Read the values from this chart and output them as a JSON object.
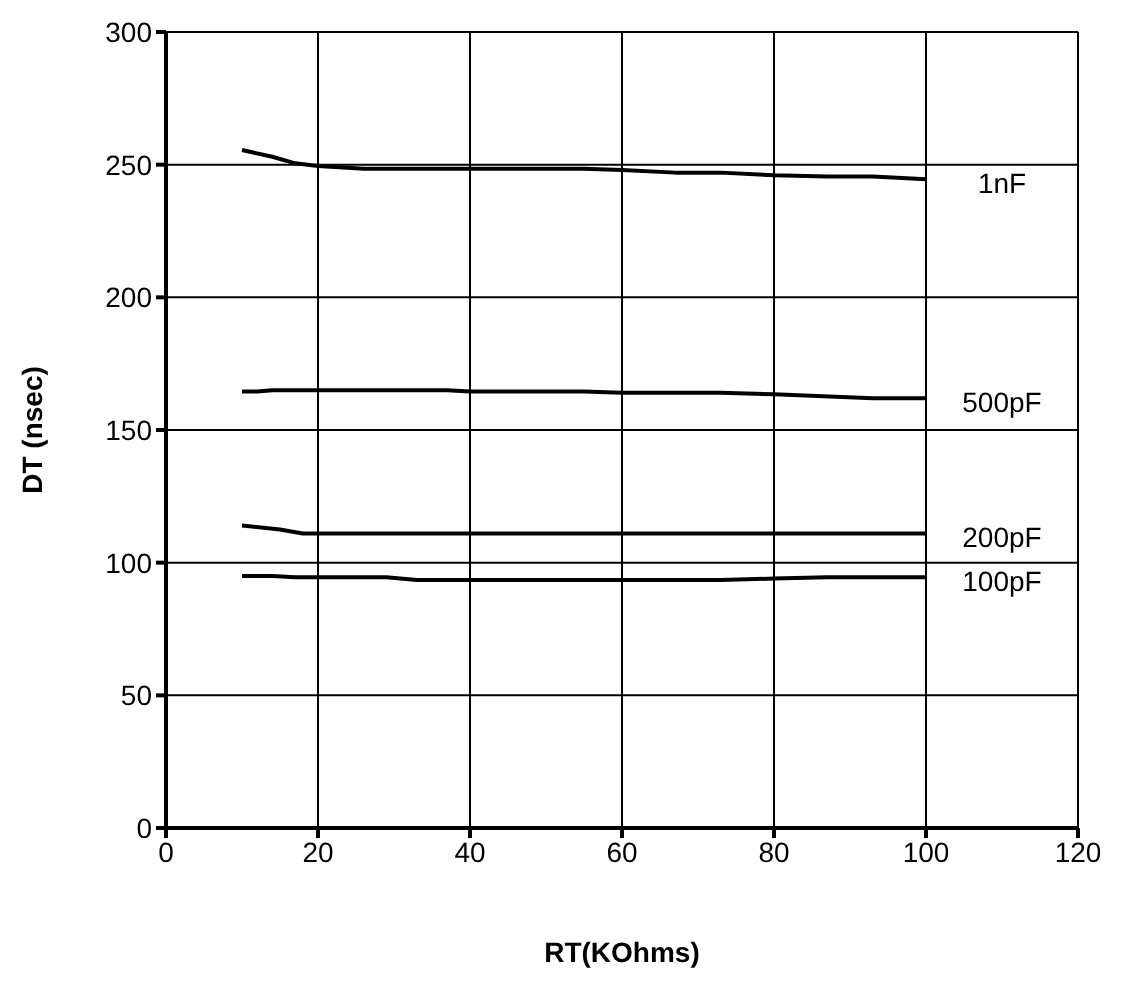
{
  "chart_data": {
    "type": "line",
    "xlabel": "RT(KOhms)",
    "ylabel": "DT (nsec)",
    "xlim": [
      0,
      120
    ],
    "xticks": [
      0,
      20,
      40,
      60,
      80,
      100,
      120
    ],
    "ylim": [
      0,
      300
    ],
    "yticks": [
      0,
      50,
      100,
      150,
      200,
      250,
      300
    ],
    "grid": true,
    "legend": false,
    "marker": "none",
    "line_style": "solid",
    "series": [
      {
        "name": "1nF",
        "color": "#000000",
        "x": [
          10,
          14,
          17,
          20,
          26,
          40,
          55,
          60,
          67,
          73,
          80,
          87,
          93,
          100
        ],
        "values": [
          255.5,
          253,
          250.5,
          249.5,
          248.5,
          248.5,
          248.5,
          248,
          247,
          247,
          246,
          245.5,
          245.5,
          244.5
        ]
      },
      {
        "name": "500pF",
        "color": "#000000",
        "x": [
          10,
          12,
          14,
          20,
          37,
          40,
          55,
          60,
          73,
          80,
          93,
          100
        ],
        "values": [
          164.5,
          164.5,
          165,
          165,
          165,
          164.5,
          164.5,
          164,
          164,
          163.5,
          162,
          162
        ]
      },
      {
        "name": "200pF",
        "color": "#000000",
        "x": [
          10,
          15,
          18,
          20,
          100
        ],
        "values": [
          114,
          112.5,
          111,
          111,
          111
        ]
      },
      {
        "name": "100pF",
        "color": "#000000",
        "x": [
          10,
          14,
          17,
          20,
          29,
          33,
          60,
          73,
          80,
          87,
          100
        ],
        "values": [
          95,
          95,
          94.5,
          94.5,
          94.5,
          93.5,
          93.5,
          93.5,
          94,
          94.5,
          94.5
        ]
      }
    ]
  }
}
